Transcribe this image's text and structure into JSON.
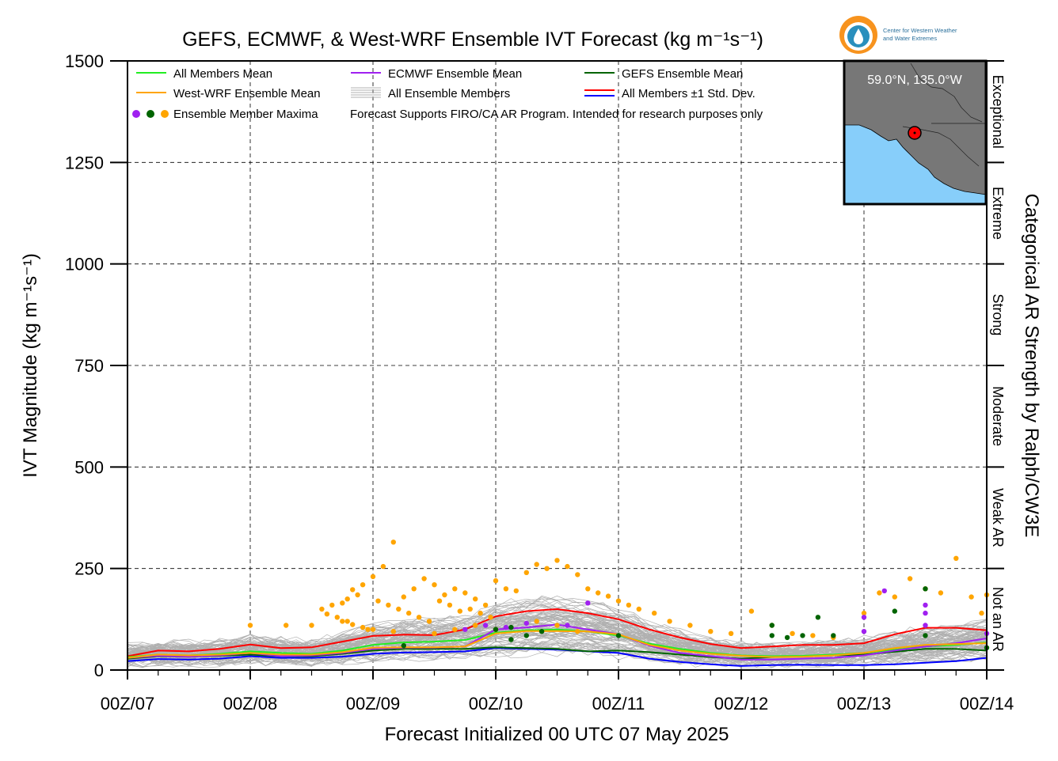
{
  "chart_data": {
    "type": "line",
    "title": "GEFS, ECMWF, & West-WRF Ensemble IVT Forecast (kg m⁻¹s⁻¹)",
    "xlabel": "Forecast Initialized 00 UTC 07 May 2025",
    "ylabel": "IVT Magnitude (kg m⁻¹s⁻¹)",
    "right_label": "Categorical AR Strength by Ralph/CW3E",
    "ylim": [
      0,
      1500
    ],
    "xlim": [
      0,
      168
    ],
    "x_unit": "forecast hours since 00Z/07",
    "x_ticks": [
      {
        "h": 0,
        "label": "00Z/07"
      },
      {
        "h": 24,
        "label": "00Z/08"
      },
      {
        "h": 48,
        "label": "00Z/09"
      },
      {
        "h": 72,
        "label": "00Z/10"
      },
      {
        "h": 96,
        "label": "00Z/11"
      },
      {
        "h": 120,
        "label": "00Z/12"
      },
      {
        "h": 144,
        "label": "00Z/13"
      },
      {
        "h": 168,
        "label": "00Z/14"
      }
    ],
    "y_ticks": [
      {
        "v": 0,
        "label": "0"
      },
      {
        "v": 250,
        "label": "250"
      },
      {
        "v": 500,
        "label": "500"
      },
      {
        "v": 750,
        "label": "750"
      },
      {
        "v": 1000,
        "label": "1000"
      },
      {
        "v": 1250,
        "label": "1250"
      },
      {
        "v": 1500,
        "label": "1500"
      }
    ],
    "grid": true,
    "categories": [
      {
        "label": "Not an AR",
        "range": [
          0,
          250
        ]
      },
      {
        "label": "Weak AR",
        "range": [
          250,
          500
        ]
      },
      {
        "label": "Moderate",
        "range": [
          500,
          750
        ]
      },
      {
        "label": "Strong",
        "range": [
          750,
          1000
        ]
      },
      {
        "label": "Extreme",
        "range": [
          1000,
          1250
        ]
      },
      {
        "label": "Exceptional",
        "range": [
          1250,
          1500
        ]
      }
    ],
    "x": [
      0,
      6,
      12,
      18,
      24,
      30,
      36,
      42,
      48,
      54,
      60,
      66,
      72,
      78,
      84,
      90,
      96,
      102,
      108,
      114,
      120,
      126,
      132,
      138,
      144,
      150,
      156,
      162,
      168
    ],
    "series": [
      {
        "name": "All Members Mean",
        "color": "#22ee22",
        "values": [
          32,
          38,
          36,
          40,
          46,
          42,
          40,
          48,
          62,
          68,
          70,
          74,
          92,
          98,
          100,
          95,
          85,
          65,
          52,
          42,
          36,
          34,
          35,
          38,
          42,
          50,
          58,
          62,
          68
        ]
      },
      {
        "name": "West-WRF Ensemble Mean",
        "color": "#ffa500",
        "values": [
          30,
          38,
          36,
          38,
          42,
          38,
          38,
          44,
          55,
          56,
          56,
          58,
          90,
          96,
          96,
          95,
          88,
          62,
          48,
          40,
          35,
          32,
          33,
          36,
          42,
          54,
          62,
          64,
          66
        ]
      },
      {
        "name": "ECMWF Ensemble Mean",
        "color": "#a020f0",
        "values": [
          30,
          35,
          33,
          36,
          42,
          34,
          36,
          42,
          52,
          55,
          55,
          58,
          100,
          105,
          112,
          100,
          88,
          60,
          42,
          34,
          26,
          26,
          28,
          30,
          36,
          48,
          58,
          66,
          78
        ]
      },
      {
        "name": "GEFS Ensemble Mean",
        "color": "#006400",
        "values": [
          28,
          34,
          33,
          35,
          38,
          34,
          34,
          40,
          48,
          52,
          52,
          52,
          56,
          54,
          52,
          46,
          48,
          44,
          38,
          32,
          28,
          32,
          34,
          36,
          38,
          45,
          52,
          52,
          48
        ]
      },
      {
        "name": "All Members ±1 Std. Dev.",
        "color": "#ff0000",
        "values": [
          34,
          48,
          46,
          52,
          63,
          54,
          56,
          70,
          84,
          87,
          86,
          100,
          132,
          145,
          150,
          140,
          125,
          100,
          80,
          64,
          54,
          58,
          62,
          62,
          66,
          88,
          104,
          104,
          98
        ]
      },
      {
        "name": "lower std",
        "color": "#0000ff",
        "values": [
          22,
          27,
          26,
          28,
          34,
          30,
          30,
          33,
          40,
          43,
          44,
          46,
          54,
          52,
          50,
          46,
          42,
          28,
          20,
          14,
          10,
          12,
          13,
          12,
          12,
          14,
          18,
          22,
          30
        ]
      }
    ],
    "maxima": [
      {
        "x": 52,
        "y": 315,
        "color": "#ffa500"
      },
      {
        "x": 50,
        "y": 255,
        "color": "#ffa500"
      },
      {
        "x": 48,
        "y": 230,
        "color": "#ffa500"
      },
      {
        "x": 46,
        "y": 210,
        "color": "#ffa500"
      },
      {
        "x": 44,
        "y": 198,
        "color": "#ffa500"
      },
      {
        "x": 45,
        "y": 185,
        "color": "#ffa500"
      },
      {
        "x": 43,
        "y": 175,
        "color": "#ffa500"
      },
      {
        "x": 42,
        "y": 165,
        "color": "#ffa500"
      },
      {
        "x": 40,
        "y": 160,
        "color": "#ffa500"
      },
      {
        "x": 38,
        "y": 150,
        "color": "#ffa500"
      },
      {
        "x": 39,
        "y": 138,
        "color": "#ffa500"
      },
      {
        "x": 41,
        "y": 130,
        "color": "#ffa500"
      },
      {
        "x": 43,
        "y": 120,
        "color": "#ffa500"
      },
      {
        "x": 44,
        "y": 112,
        "color": "#ffa500"
      },
      {
        "x": 46,
        "y": 105,
        "color": "#ffa500"
      },
      {
        "x": 47,
        "y": 100,
        "color": "#ffa500"
      },
      {
        "x": 49,
        "y": 170,
        "color": "#ffa500"
      },
      {
        "x": 51,
        "y": 160,
        "color": "#ffa500"
      },
      {
        "x": 53,
        "y": 150,
        "color": "#ffa500"
      },
      {
        "x": 55,
        "y": 140,
        "color": "#ffa500"
      },
      {
        "x": 57,
        "y": 130,
        "color": "#ffa500"
      },
      {
        "x": 59,
        "y": 120,
        "color": "#ffa500"
      },
      {
        "x": 61,
        "y": 170,
        "color": "#ffa500"
      },
      {
        "x": 63,
        "y": 160,
        "color": "#ffa500"
      },
      {
        "x": 65,
        "y": 145,
        "color": "#ffa500"
      },
      {
        "x": 67,
        "y": 150,
        "color": "#ffa500"
      },
      {
        "x": 69,
        "y": 140,
        "color": "#ffa500"
      },
      {
        "x": 71,
        "y": 130,
        "color": "#ffa500"
      },
      {
        "x": 70,
        "y": 160,
        "color": "#ffa500"
      },
      {
        "x": 68,
        "y": 175,
        "color": "#ffa500"
      },
      {
        "x": 66,
        "y": 190,
        "color": "#ffa500"
      },
      {
        "x": 64,
        "y": 200,
        "color": "#ffa500"
      },
      {
        "x": 62,
        "y": 185,
        "color": "#ffa500"
      },
      {
        "x": 60,
        "y": 210,
        "color": "#ffa500"
      },
      {
        "x": 58,
        "y": 225,
        "color": "#ffa500"
      },
      {
        "x": 56,
        "y": 200,
        "color": "#ffa500"
      },
      {
        "x": 54,
        "y": 180,
        "color": "#ffa500"
      },
      {
        "x": 72,
        "y": 220,
        "color": "#ffa500"
      },
      {
        "x": 74,
        "y": 200,
        "color": "#ffa500"
      },
      {
        "x": 76,
        "y": 195,
        "color": "#ffa500"
      },
      {
        "x": 78,
        "y": 240,
        "color": "#ffa500"
      },
      {
        "x": 80,
        "y": 260,
        "color": "#ffa500"
      },
      {
        "x": 82,
        "y": 250,
        "color": "#ffa500"
      },
      {
        "x": 84,
        "y": 270,
        "color": "#ffa500"
      },
      {
        "x": 86,
        "y": 255,
        "color": "#ffa500"
      },
      {
        "x": 88,
        "y": 235,
        "color": "#ffa500"
      },
      {
        "x": 90,
        "y": 200,
        "color": "#ffa500"
      },
      {
        "x": 92,
        "y": 190,
        "color": "#ffa500"
      },
      {
        "x": 94,
        "y": 182,
        "color": "#ffa500"
      },
      {
        "x": 96,
        "y": 170,
        "color": "#ffa500"
      },
      {
        "x": 98,
        "y": 160,
        "color": "#ffa500"
      },
      {
        "x": 100,
        "y": 150,
        "color": "#ffa500"
      },
      {
        "x": 103,
        "y": 140,
        "color": "#ffa500"
      },
      {
        "x": 106,
        "y": 120,
        "color": "#ffa500"
      },
      {
        "x": 110,
        "y": 110,
        "color": "#ffa500"
      },
      {
        "x": 114,
        "y": 95,
        "color": "#ffa500"
      },
      {
        "x": 118,
        "y": 90,
        "color": "#ffa500"
      },
      {
        "x": 122,
        "y": 145,
        "color": "#ffa500"
      },
      {
        "x": 126,
        "y": 110,
        "color": "#ffa500"
      },
      {
        "x": 130,
        "y": 90,
        "color": "#ffa500"
      },
      {
        "x": 134,
        "y": 85,
        "color": "#ffa500"
      },
      {
        "x": 138,
        "y": 80,
        "color": "#ffa500"
      },
      {
        "x": 144,
        "y": 140,
        "color": "#ffa500"
      },
      {
        "x": 147,
        "y": 190,
        "color": "#ffa500"
      },
      {
        "x": 150,
        "y": 180,
        "color": "#ffa500"
      },
      {
        "x": 153,
        "y": 225,
        "color": "#ffa500"
      },
      {
        "x": 156,
        "y": 200,
        "color": "#ffa500"
      },
      {
        "x": 159,
        "y": 190,
        "color": "#ffa500"
      },
      {
        "x": 162,
        "y": 275,
        "color": "#ffa500"
      },
      {
        "x": 165,
        "y": 180,
        "color": "#ffa500"
      },
      {
        "x": 168,
        "y": 185,
        "color": "#ffa500"
      },
      {
        "x": 167,
        "y": 140,
        "color": "#ffa500"
      },
      {
        "x": 24,
        "y": 110,
        "color": "#ffa500"
      },
      {
        "x": 31,
        "y": 110,
        "color": "#ffa500"
      },
      {
        "x": 36,
        "y": 110,
        "color": "#ffa500"
      },
      {
        "x": 42,
        "y": 120,
        "color": "#ffa500"
      },
      {
        "x": 48,
        "y": 100,
        "color": "#ffa500"
      },
      {
        "x": 52,
        "y": 95,
        "color": "#ffa500"
      },
      {
        "x": 60,
        "y": 90,
        "color": "#ffa500"
      },
      {
        "x": 64,
        "y": 100,
        "color": "#ffa500"
      },
      {
        "x": 68,
        "y": 110,
        "color": "#ffa500"
      },
      {
        "x": 72,
        "y": 100,
        "color": "#ffa500"
      },
      {
        "x": 80,
        "y": 120,
        "color": "#ffa500"
      },
      {
        "x": 84,
        "y": 110,
        "color": "#ffa500"
      },
      {
        "x": 88,
        "y": 95,
        "color": "#ffa500"
      },
      {
        "x": 66,
        "y": 100,
        "color": "#a020f0"
      },
      {
        "x": 70,
        "y": 110,
        "color": "#a020f0"
      },
      {
        "x": 74,
        "y": 105,
        "color": "#a020f0"
      },
      {
        "x": 78,
        "y": 115,
        "color": "#a020f0"
      },
      {
        "x": 86,
        "y": 110,
        "color": "#a020f0"
      },
      {
        "x": 90,
        "y": 165,
        "color": "#a020f0"
      },
      {
        "x": 144,
        "y": 95,
        "color": "#a020f0"
      },
      {
        "x": 144,
        "y": 130,
        "color": "#a020f0"
      },
      {
        "x": 148,
        "y": 195,
        "color": "#a020f0"
      },
      {
        "x": 156,
        "y": 160,
        "color": "#a020f0"
      },
      {
        "x": 156,
        "y": 140,
        "color": "#a020f0"
      },
      {
        "x": 156,
        "y": 110,
        "color": "#a020f0"
      },
      {
        "x": 168,
        "y": 90,
        "color": "#a020f0"
      },
      {
        "x": 54,
        "y": 60,
        "color": "#006400"
      },
      {
        "x": 72,
        "y": 100,
        "color": "#006400"
      },
      {
        "x": 75,
        "y": 105,
        "color": "#006400"
      },
      {
        "x": 75,
        "y": 75,
        "color": "#006400"
      },
      {
        "x": 78,
        "y": 85,
        "color": "#006400"
      },
      {
        "x": 81,
        "y": 95,
        "color": "#006400"
      },
      {
        "x": 96,
        "y": 85,
        "color": "#006400"
      },
      {
        "x": 126,
        "y": 85,
        "color": "#006400"
      },
      {
        "x": 126,
        "y": 110,
        "color": "#006400"
      },
      {
        "x": 129,
        "y": 80,
        "color": "#006400"
      },
      {
        "x": 132,
        "y": 85,
        "color": "#006400"
      },
      {
        "x": 135,
        "y": 130,
        "color": "#006400"
      },
      {
        "x": 138,
        "y": 85,
        "color": "#006400"
      },
      {
        "x": 150,
        "y": 145,
        "color": "#006400"
      },
      {
        "x": 156,
        "y": 200,
        "color": "#006400"
      },
      {
        "x": 156,
        "y": 85,
        "color": "#006400"
      },
      {
        "x": 168,
        "y": 55,
        "color": "#006400"
      }
    ],
    "legend": {
      "placement": "top-left",
      "items": [
        {
          "label": "All Members Mean",
          "type": "line",
          "colors": [
            "#22ee22"
          ]
        },
        {
          "label": "ECMWF Ensemble Mean",
          "type": "line",
          "colors": [
            "#a020f0"
          ]
        },
        {
          "label": "GEFS Ensemble Mean",
          "type": "line",
          "colors": [
            "#006400"
          ]
        },
        {
          "label": "West-WRF Ensemble Mean",
          "type": "line",
          "colors": [
            "#ffa500"
          ]
        },
        {
          "label": "All Ensemble Members",
          "type": "lines",
          "colors": [
            "#b0b0b0"
          ]
        },
        {
          "label": "All Members ±1 Std. Dev.",
          "type": "double",
          "colors": [
            "#ff0000",
            "#0000ff"
          ]
        },
        {
          "label": "Ensemble Member Maxima",
          "type": "dots",
          "colors": [
            "#a020f0",
            "#006400",
            "#ffa500"
          ]
        }
      ],
      "note": "Forecast Supports FIRO/CA AR Program. Intended for research purposes only"
    },
    "inset": {
      "location_label": "59.0°N, 135.0°W",
      "land_color": "#777777",
      "sea_color": "#87cefa",
      "marker_color": "#ff0000"
    },
    "logo": {
      "line1": "Center for Western Weather",
      "line2": "and Water Extremes"
    },
    "colors": {
      "members": "#b0b0b0",
      "grid": "#000000"
    }
  }
}
